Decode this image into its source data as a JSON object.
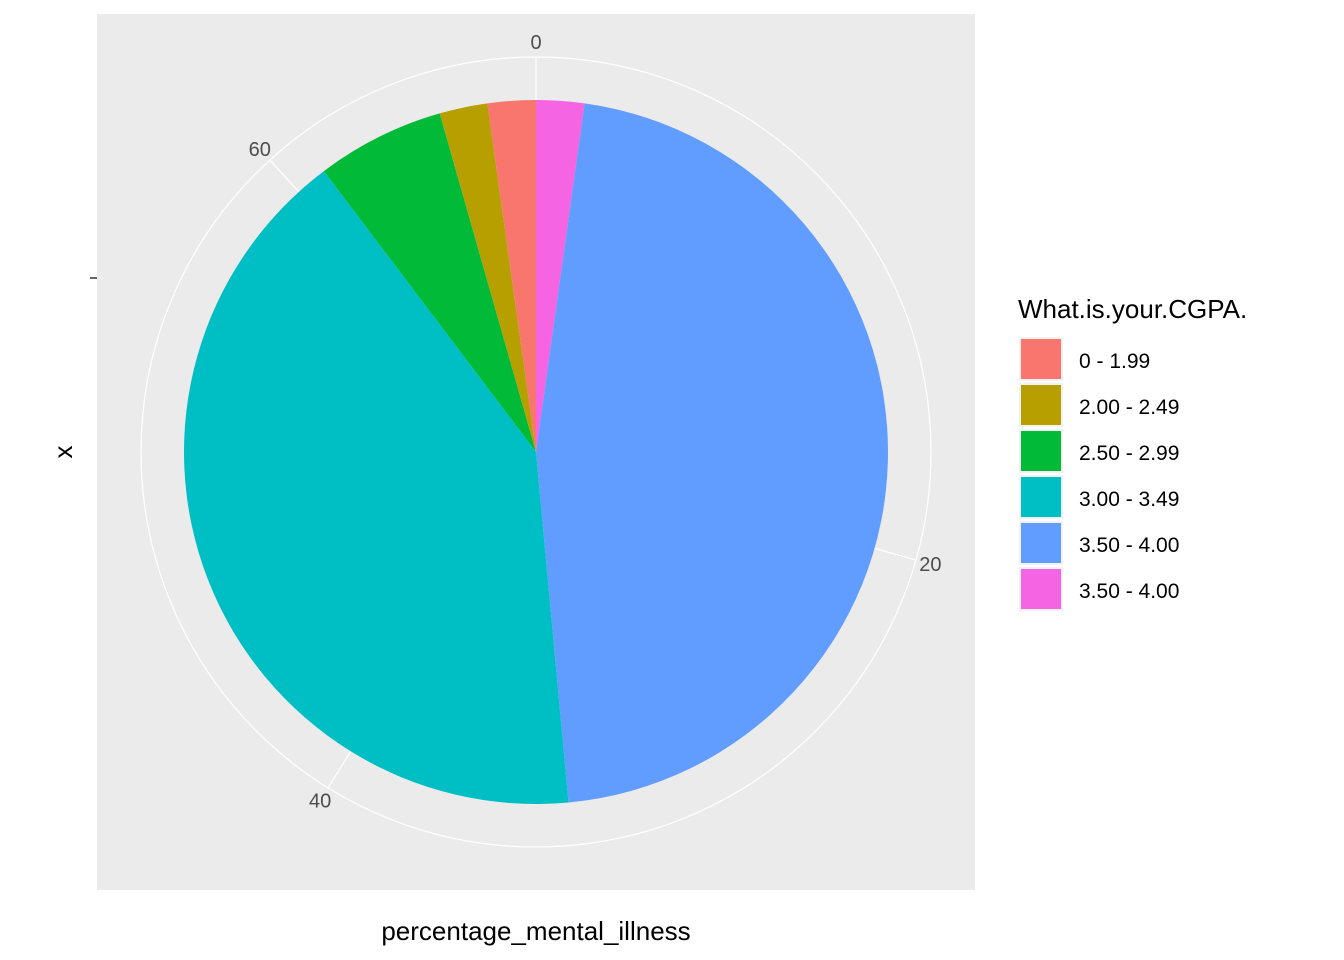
{
  "chart_data": {
    "type": "pie",
    "coord": "polar",
    "xlabel": "percentage_mental_illness",
    "ylabel": "x",
    "theta_ticks": [
      0,
      20,
      40,
      60
    ],
    "theta_tick_labels": [
      "0",
      "20",
      "40",
      "60"
    ],
    "total": 68,
    "legend": {
      "title": "What.is.your.CGPA.",
      "position": "right"
    },
    "series": [
      {
        "name": "0 - 1.99",
        "value": 1.5,
        "color": "#F8766D"
      },
      {
        "name": "2.00 - 2.49",
        "value": 1.5,
        "color": "#B79F00"
      },
      {
        "name": "2.50 - 2.99",
        "value": 4,
        "color": "#00BA38"
      },
      {
        "name": "3.00 - 3.49",
        "value": 28,
        "color": "#00BFC4"
      },
      {
        "name": "3.50 - 4.00",
        "value": 31.5,
        "color": "#619CFF"
      },
      {
        "name": "3.50 - 4.00",
        "value": 1.5,
        "color": "#F564E3"
      }
    ],
    "stack_order": [
      5,
      4,
      3,
      2,
      1,
      0
    ],
    "panel_background": "#EBEBEB",
    "grid_color": "#FFFFFF",
    "grid": true
  }
}
